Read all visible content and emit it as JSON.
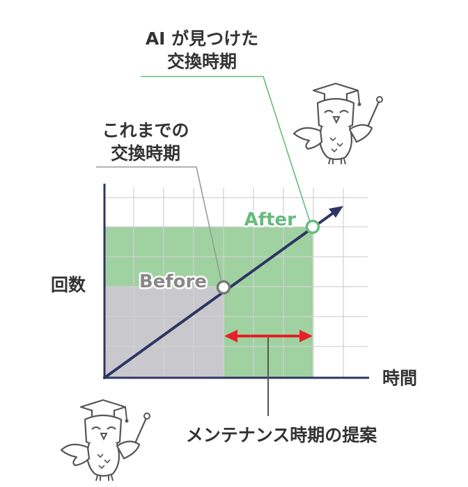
{
  "callouts": {
    "ai_line1": "AI が見つけた",
    "ai_line2": "交換時期",
    "prev_line1": "これまでの",
    "prev_line2": "交換時期"
  },
  "points": {
    "before": "Before",
    "after": "After"
  },
  "axes": {
    "y_label": "回数",
    "x_label": "時間"
  },
  "proposal": "メンテナンス時期の提案",
  "colors": {
    "axis": "#2e3564",
    "grid": "#d2d2d2",
    "gray_region": "#c9c9cd",
    "green_region": "#9fd2a0",
    "green_accent": "#66bb7d",
    "arrow_red": "#e8202a",
    "leader_gray": "#9a9a9a",
    "text": "#333333"
  },
  "icons": [
    "owl-scholar-icon"
  ]
}
